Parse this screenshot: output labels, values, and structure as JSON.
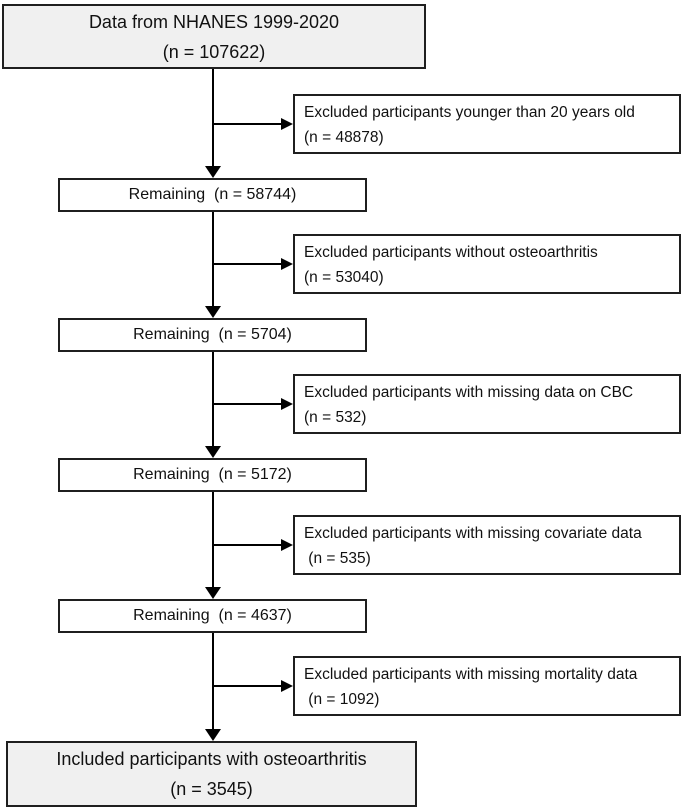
{
  "meta": {
    "background_color": "#ffffff",
    "box_border_color": "#1f1f1f",
    "connector_color": "#000000",
    "highlight_fill": "#f0f0f0",
    "plain_fill": "#ffffff"
  },
  "flow": {
    "start": {
      "line1": "Data from NHANES 1999-2020",
      "line2": "(n = 107622)"
    },
    "steps": [
      {
        "excluded": {
          "line1": "Excluded participants younger than 20 years old",
          "line2": "(n = 48878)"
        },
        "remaining": "Remaining  (n = 58744)"
      },
      {
        "excluded": {
          "line1": "Excluded participants without osteoarthritis",
          "line2": "(n = 53040)"
        },
        "remaining": "Remaining  (n = 5704)"
      },
      {
        "excluded": {
          "line1": "Excluded participants with missing data on CBC",
          "line2": "(n = 532)"
        },
        "remaining": "Remaining  (n = 5172)"
      },
      {
        "excluded": {
          "line1": "Excluded participants with missing covariate data",
          "line2": " (n = 535)"
        },
        "remaining": "Remaining  (n = 4637)"
      },
      {
        "excluded": {
          "line1": "Excluded participants with missing mortality data",
          "line2": " (n = 1092)"
        },
        "remaining": null
      }
    ],
    "end": {
      "line1": "Included participants with osteoarthritis",
      "line2": "(n = 3545)"
    }
  }
}
